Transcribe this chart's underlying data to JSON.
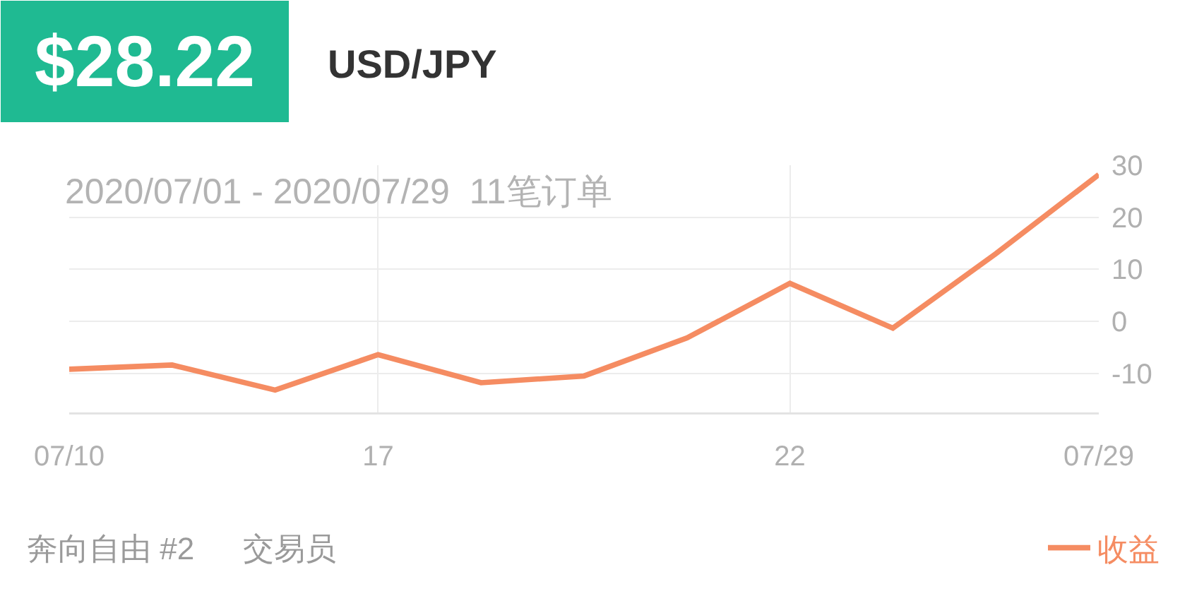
{
  "chart_data": {
    "type": "line",
    "title": "USD/JPY",
    "subtitle": "2020/07/01 - 2020/07/29  11笔订单",
    "annotations": [
      "$28.22",
      "奔向自由 #2",
      "交易员"
    ],
    "categories": [
      "07/10",
      null,
      null,
      "17",
      null,
      null,
      null,
      "22",
      null,
      null,
      "07/29"
    ],
    "series": [
      {
        "name": "收益",
        "color": "#f58c62",
        "values": [
          -9.2,
          -8.4,
          -13.2,
          -6.4,
          -11.8,
          -10.5,
          -3.2,
          7.3,
          -1.3,
          13,
          28.2
        ]
      }
    ],
    "ylim": [
      -17.5,
      30
    ],
    "yticks": [
      -10,
      0,
      10,
      20,
      30
    ],
    "grid": true,
    "legend": "bottom right"
  }
}
